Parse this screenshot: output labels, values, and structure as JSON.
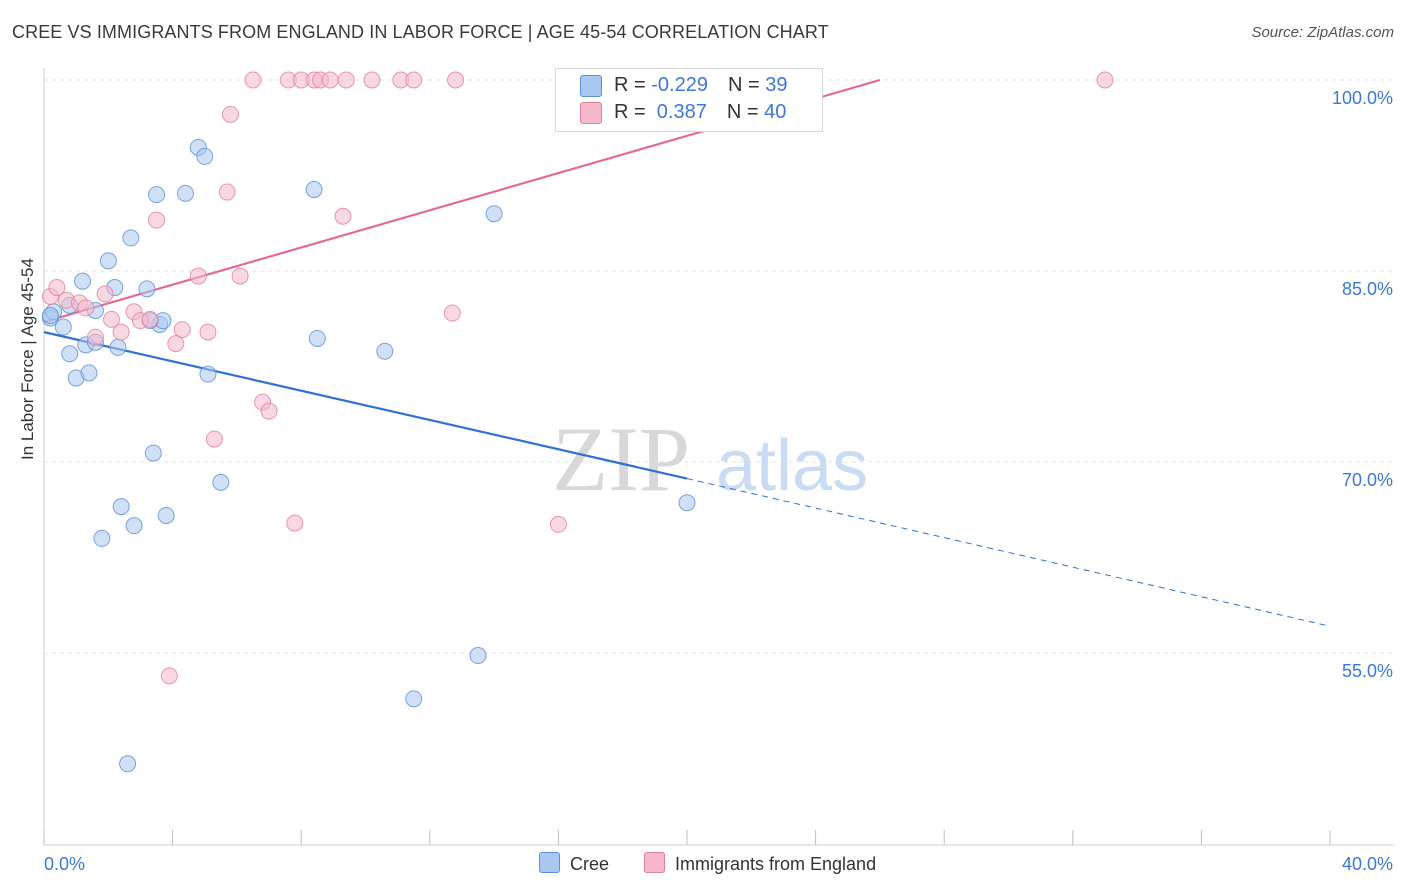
{
  "title": "CREE VS IMMIGRANTS FROM ENGLAND IN LABOR FORCE | AGE 45-54 CORRELATION CHART",
  "source": "Source: ZipAtlas.com",
  "watermark": {
    "zip": "ZIP",
    "atlas": "atlas"
  },
  "legend": {
    "rows": [
      {
        "r_label": "R = ",
        "r_value": "-0.229",
        "n_label": "N = ",
        "n_value": "39",
        "color": "#a9c8f0"
      },
      {
        "r_label": "R = ",
        "r_value": " 0.387",
        "n_label": "N = ",
        "n_value": "40",
        "color": "#f6b8cb"
      }
    ]
  },
  "bottom_legend": [
    {
      "label": "Cree",
      "color": "#a9c8f0"
    },
    {
      "label": "Immigrants from England",
      "color": "#f6b8cb"
    }
  ],
  "chart_data": {
    "type": "scatter",
    "ylabel": "In Labor Force | Age 45-54",
    "xlim": [
      0,
      40
    ],
    "ylim": [
      43,
      101
    ],
    "x_tick_labels": [
      {
        "value": 0,
        "label": "0.0%"
      },
      {
        "value": 40,
        "label": "40.0%"
      }
    ],
    "y_tick_labels": [
      {
        "value": 100,
        "label": "100.0%"
      },
      {
        "value": 85,
        "label": "85.0%"
      },
      {
        "value": 70,
        "label": "70.0%"
      },
      {
        "value": 55,
        "label": "55.0%"
      }
    ],
    "x_minor_ticks": [
      0,
      4,
      8,
      12,
      16,
      20,
      24,
      28,
      32,
      36,
      40
    ],
    "grid": true,
    "series": [
      {
        "name": "Cree",
        "color": "#a9c8f0",
        "edge": "#5b8fd6",
        "trend": {
          "x0": 0,
          "y0": 80.2,
          "x1": 20,
          "y1": 68.7,
          "dash_to_x": 40,
          "dash_to_y": 57.1,
          "color": "#2f72d0"
        },
        "points": [
          [
            0.2,
            81.3
          ],
          [
            0.3,
            81.8
          ],
          [
            0.6,
            80.6
          ],
          [
            0.8,
            82.3
          ],
          [
            0.8,
            78.5
          ],
          [
            1.0,
            76.6
          ],
          [
            1.2,
            84.2
          ],
          [
            1.3,
            79.2
          ],
          [
            1.4,
            77.0
          ],
          [
            1.6,
            79.4
          ],
          [
            1.6,
            81.9
          ],
          [
            1.8,
            64.0
          ],
          [
            2.0,
            85.8
          ],
          [
            2.2,
            83.7
          ],
          [
            2.3,
            79.0
          ],
          [
            2.4,
            66.5
          ],
          [
            2.6,
            46.3
          ],
          [
            2.7,
            87.6
          ],
          [
            2.8,
            65.0
          ],
          [
            3.2,
            83.6
          ],
          [
            3.4,
            70.7
          ],
          [
            3.5,
            91.0
          ],
          [
            3.6,
            80.8
          ],
          [
            3.7,
            81.1
          ],
          [
            3.8,
            65.8
          ],
          [
            4.4,
            91.1
          ],
          [
            4.8,
            94.7
          ],
          [
            5.0,
            94.0
          ],
          [
            5.1,
            76.9
          ],
          [
            5.5,
            68.4
          ],
          [
            8.4,
            91.4
          ],
          [
            8.5,
            79.7
          ],
          [
            10.6,
            78.7
          ],
          [
            13.5,
            54.8
          ],
          [
            14.0,
            89.5
          ],
          [
            11.5,
            51.4
          ],
          [
            20.0,
            66.8
          ],
          [
            0.2,
            81.5
          ],
          [
            3.3,
            81.1
          ]
        ]
      },
      {
        "name": "Immigrants from England",
        "color": "#f6b8cb",
        "edge": "#e27fa0",
        "trend": {
          "x0": 0,
          "y0": 81.0,
          "x1": 26,
          "y1": 100.0,
          "color": "#e56a93"
        },
        "points": [
          [
            0.2,
            83.0
          ],
          [
            0.4,
            83.7
          ],
          [
            0.7,
            82.7
          ],
          [
            1.1,
            82.5
          ],
          [
            1.3,
            82.1
          ],
          [
            1.6,
            79.8
          ],
          [
            1.9,
            83.2
          ],
          [
            2.1,
            81.2
          ],
          [
            2.4,
            80.2
          ],
          [
            2.8,
            81.8
          ],
          [
            3.0,
            81.1
          ],
          [
            3.3,
            81.2
          ],
          [
            3.5,
            89.0
          ],
          [
            3.9,
            53.2
          ],
          [
            4.1,
            79.3
          ],
          [
            4.3,
            80.4
          ],
          [
            4.8,
            84.6
          ],
          [
            5.1,
            80.2
          ],
          [
            5.3,
            71.8
          ],
          [
            5.7,
            91.2
          ],
          [
            5.8,
            97.3
          ],
          [
            6.1,
            84.6
          ],
          [
            6.5,
            100.0
          ],
          [
            6.8,
            74.7
          ],
          [
            7.0,
            74.0
          ],
          [
            7.6,
            100.0
          ],
          [
            7.8,
            65.2
          ],
          [
            8.0,
            100.0
          ],
          [
            8.4,
            100.0
          ],
          [
            8.6,
            100.0
          ],
          [
            8.9,
            100.0
          ],
          [
            9.3,
            89.3
          ],
          [
            9.4,
            100.0
          ],
          [
            10.2,
            100.0
          ],
          [
            11.1,
            100.0
          ],
          [
            11.5,
            100.0
          ],
          [
            12.8,
            100.0
          ],
          [
            12.7,
            81.7
          ],
          [
            16.0,
            65.1
          ],
          [
            33.0,
            100.0
          ]
        ]
      }
    ]
  }
}
